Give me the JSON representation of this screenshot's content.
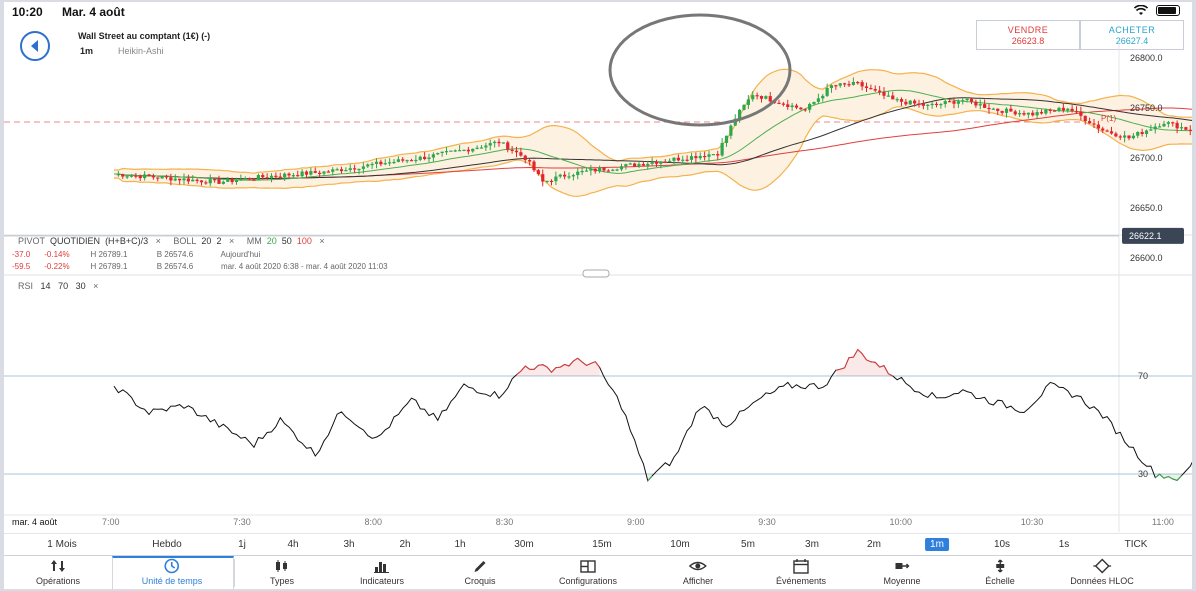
{
  "status": {
    "time": "10:20",
    "date": "Mar. 4 août"
  },
  "header": {
    "instrument": "Wall Street au comptant (1€) (-)",
    "timeframe": "1m",
    "chart_type": "Heikin-Ashi",
    "sell": {
      "label": "VENDRE",
      "value": "26623.8"
    },
    "buy": {
      "label": "ACHETER",
      "value": "26627.4"
    }
  },
  "price_chart": {
    "y_ticks": [
      "26800.0",
      "26750.0",
      "26700.0",
      "26650.0",
      "26600.0"
    ],
    "current_price": "26622.1",
    "pivot_label": "P(1)",
    "indicators": {
      "pivot": "PIVOT",
      "quotidien": "QUOTIDIEN",
      "formula": "(H+B+C)/3",
      "boll": "BOLL",
      "boll_p1": "20",
      "boll_p2": "2",
      "mm": "MM",
      "mm_p1": "20",
      "mm_p2": "50",
      "mm_p3": "100",
      "close": "×"
    },
    "stats": [
      {
        "chg": "-37.0",
        "pct": "-0.14%",
        "h": "H 26789.1",
        "b": "B 26574.6",
        "desc": "Aujourd'hui"
      },
      {
        "chg": "-59.5",
        "pct": "-0.22%",
        "h": "H 26789.1",
        "b": "B 26574.6",
        "desc": "mar. 4 août 2020 6:38 - mar. 4 août 2020 11:03"
      }
    ]
  },
  "rsi_chart": {
    "label": "RSI",
    "p1": "14",
    "p2": "70",
    "p3": "30",
    "close": "×",
    "y_ticks": [
      "70",
      "30"
    ]
  },
  "time_axis": {
    "date_label": "mar. 4 août",
    "ticks": [
      "7:00",
      "7:30",
      "8:00",
      "8:30",
      "9:00",
      "9:30",
      "10:00",
      "10:30",
      "11:00"
    ]
  },
  "timeframes": [
    "1 Mois",
    "Hebdo",
    "1j",
    "4h",
    "3h",
    "2h",
    "1h",
    "30m",
    "15m",
    "10m",
    "5m",
    "3m",
    "2m",
    "1m",
    "10s",
    "1s",
    "TICK"
  ],
  "active_timeframe": "1m",
  "toolbar": [
    {
      "label": "Opérations",
      "icon": "arrows-updown-icon"
    },
    {
      "label": "Unité de temps",
      "icon": "clock-icon"
    },
    {
      "label": "Types",
      "icon": "candles-icon"
    },
    {
      "label": "Indicateurs",
      "icon": "bars-icon"
    },
    {
      "label": "Croquis",
      "icon": "pencil-icon"
    },
    {
      "label": "Configurations",
      "icon": "layout-icon"
    },
    {
      "label": "Afficher",
      "icon": "eye-icon"
    },
    {
      "label": "Événements",
      "icon": "calendar-icon"
    },
    {
      "label": "Moyenne",
      "icon": "average-icon"
    },
    {
      "label": "Échelle",
      "icon": "scale-icon"
    },
    {
      "label": "Données HLOC",
      "icon": "diamond-icon"
    }
  ],
  "colors": {
    "up": "#2ea84a",
    "down": "#e0262b",
    "accent": "#2f7fdc",
    "boll": "#f4b24b",
    "ma20": "#4caf50",
    "ma50": "#333333",
    "ma100": "#e23f3f",
    "rsi_over": "#e23f3f",
    "rsi_under": "#3fa84a"
  }
}
